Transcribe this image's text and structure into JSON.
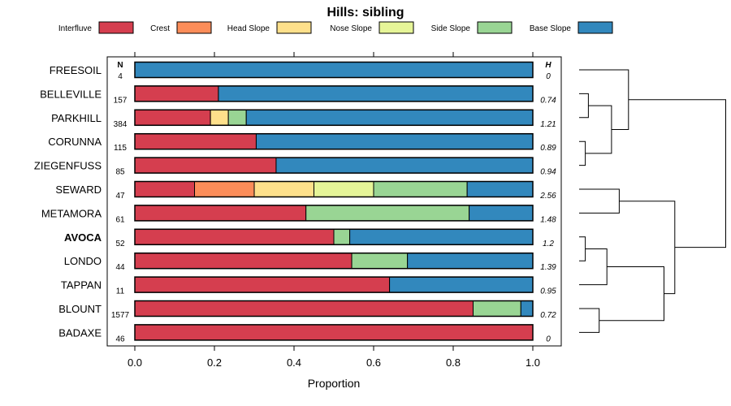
{
  "chart_data": {
    "type": "bar",
    "orientation": "horizontal",
    "stacked": true,
    "title": "Hills: sibling",
    "xlabel": "Proportion",
    "xlim": [
      0,
      1
    ],
    "xticks": [
      0.0,
      0.2,
      0.4,
      0.6,
      0.8,
      1.0
    ],
    "xtick_labels": [
      "0.0",
      "0.2",
      "0.4",
      "0.6",
      "0.8",
      "1.0"
    ],
    "legend_position": "top",
    "n_header": "N",
    "h_header": "H",
    "series": [
      {
        "name": "Interfluve",
        "color": "#D53E4F"
      },
      {
        "name": "Crest",
        "color": "#FC8D59"
      },
      {
        "name": "Head Slope",
        "color": "#FEE08B"
      },
      {
        "name": "Nose Slope",
        "color": "#E6F598"
      },
      {
        "name": "Side Slope",
        "color": "#99D594"
      },
      {
        "name": "Base Slope",
        "color": "#3288BD"
      }
    ],
    "categories": [
      {
        "name": "FREESOIL",
        "n": "4",
        "h": "0",
        "bold": false,
        "values": [
          0,
          0,
          0,
          0,
          0,
          1.0
        ]
      },
      {
        "name": "BELLEVILLE",
        "n": "157",
        "h": "0.74",
        "bold": false,
        "values": [
          0.21,
          0,
          0,
          0,
          0,
          0.79
        ]
      },
      {
        "name": "PARKHILL",
        "n": "384",
        "h": "1.21",
        "bold": false,
        "values": [
          0.19,
          0,
          0.045,
          0,
          0.045,
          0.72
        ]
      },
      {
        "name": "CORUNNA",
        "n": "115",
        "h": "0.89",
        "bold": false,
        "values": [
          0.305,
          0,
          0,
          0,
          0,
          0.695
        ]
      },
      {
        "name": "ZIEGENFUSS",
        "n": "85",
        "h": "0.94",
        "bold": false,
        "values": [
          0.355,
          0,
          0,
          0,
          0,
          0.645
        ]
      },
      {
        "name": "SEWARD",
        "n": "47",
        "h": "2.56",
        "bold": false,
        "values": [
          0.15,
          0.15,
          0.15,
          0.15,
          0.235,
          0.165
        ]
      },
      {
        "name": "METAMORA",
        "n": "61",
        "h": "1.48",
        "bold": false,
        "values": [
          0.43,
          0,
          0,
          0,
          0.41,
          0.16
        ]
      },
      {
        "name": "AVOCA",
        "n": "52",
        "h": "1.2",
        "bold": true,
        "values": [
          0.5,
          0,
          0,
          0,
          0.04,
          0.46
        ]
      },
      {
        "name": "LONDO",
        "n": "44",
        "h": "1.39",
        "bold": false,
        "values": [
          0.545,
          0,
          0,
          0,
          0.14,
          0.315
        ]
      },
      {
        "name": "TAPPAN",
        "n": "11",
        "h": "0.95",
        "bold": false,
        "values": [
          0.64,
          0,
          0,
          0,
          0,
          0.36
        ]
      },
      {
        "name": "BLOUNT",
        "n": "1577",
        "h": "0.72",
        "bold": false,
        "values": [
          0.85,
          0,
          0,
          0,
          0.12,
          0.03
        ]
      },
      {
        "name": "BADAXE",
        "n": "46",
        "h": "0",
        "bold": false,
        "values": [
          1.0,
          0,
          0,
          0,
          0,
          0
        ]
      }
    ],
    "dendrogram": {
      "description": "hierarchical clustering tree of the 12 categories (leaf indices match category order)",
      "nodes": [
        {
          "a": 3,
          "b": 4,
          "height": 0.04
        },
        {
          "a": 7,
          "b": 8,
          "height": 0.04
        },
        {
          "a": 1,
          "b": 2,
          "height": 0.06
        },
        {
          "a": 10,
          "b": 11,
          "height": 0.13
        },
        {
          "a": "n1",
          "b": 9,
          "height": 0.18
        },
        {
          "a": "n2",
          "b": "n0",
          "height": 0.21
        },
        {
          "a": "n4",
          "b": "n3",
          "height": 0.55
        },
        {
          "a": 5,
          "b": 6,
          "height": 0.26
        },
        {
          "a": 0,
          "b": "n5",
          "height": 0.32
        },
        {
          "a": "n7",
          "b": "n6",
          "height": 0.62
        },
        {
          "a": "n8",
          "b": "n9",
          "height": 0.95
        }
      ]
    }
  }
}
